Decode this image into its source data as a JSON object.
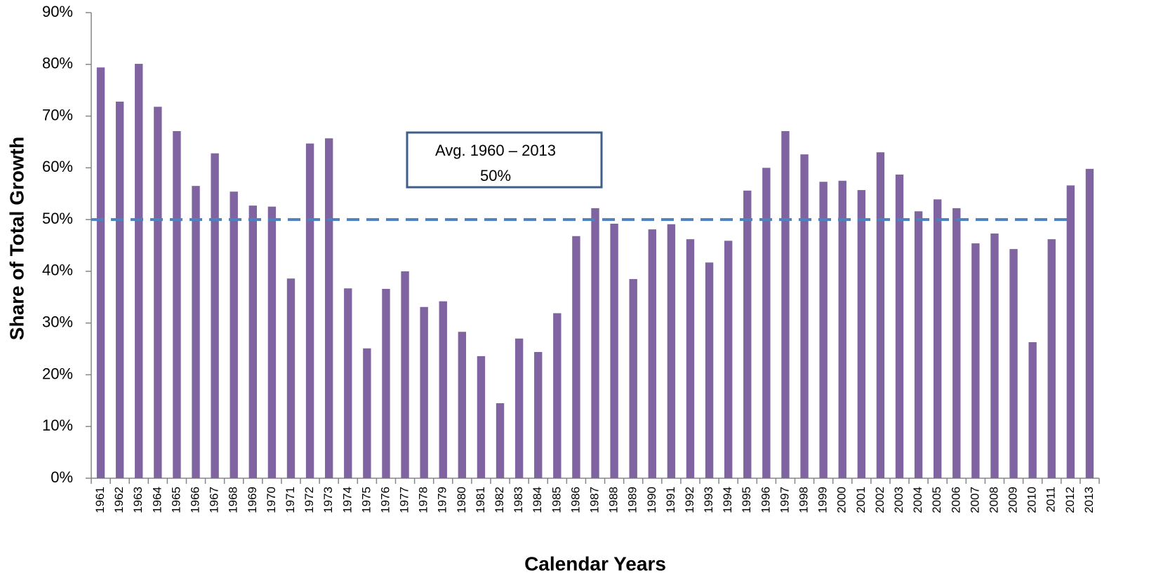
{
  "chart_data": {
    "type": "bar",
    "x_label": "Calendar Years",
    "y_label": "Share of Total Growth",
    "categories": [
      "1961",
      "1962",
      "1963",
      "1964",
      "1965",
      "1966",
      "1967",
      "1968",
      "1969",
      "1970",
      "1971",
      "1972",
      "1973",
      "1974",
      "1975",
      "1976",
      "1977",
      "1978",
      "1979",
      "1980",
      "1981",
      "1982",
      "1983",
      "1984",
      "1985",
      "1986",
      "1987",
      "1988",
      "1989",
      "1990",
      "1991",
      "1992",
      "1993",
      "1994",
      "1995",
      "1996",
      "1997",
      "1998",
      "1999",
      "2000",
      "2001",
      "2002",
      "2003",
      "2004",
      "2005",
      "2006",
      "2007",
      "2008",
      "2009",
      "2010",
      "2011",
      "2012",
      "2013"
    ],
    "values": [
      79.4,
      72.8,
      80.1,
      71.8,
      67.1,
      56.5,
      62.8,
      55.4,
      52.7,
      52.5,
      38.6,
      64.7,
      65.7,
      36.7,
      25.1,
      36.6,
      40.0,
      33.1,
      34.2,
      28.3,
      23.6,
      14.5,
      27.0,
      24.4,
      31.9,
      46.8,
      52.2,
      49.2,
      38.5,
      48.1,
      49.1,
      46.2,
      41.7,
      45.9,
      55.6,
      60.0,
      67.1,
      62.6,
      57.3,
      57.5,
      55.7,
      63.0,
      58.7,
      51.6,
      53.9,
      52.2,
      45.4,
      47.3,
      44.3,
      26.3,
      46.2,
      56.6,
      59.8
    ],
    "color": "#8064a2",
    "ylim": [
      0,
      90
    ],
    "yticks": [
      {
        "value": 0,
        "label": "0%"
      },
      {
        "value": 10,
        "label": "10%"
      },
      {
        "value": 20,
        "label": "20%"
      },
      {
        "value": 30,
        "label": "30%"
      },
      {
        "value": 40,
        "label": "40%"
      },
      {
        "value": 50,
        "label": "50%"
      },
      {
        "value": 60,
        "label": "60%"
      },
      {
        "value": 70,
        "label": "70%"
      },
      {
        "value": 80,
        "label": "80%"
      },
      {
        "value": 90,
        "label": "90%"
      }
    ],
    "grid": false,
    "average_line": {
      "value": 50,
      "color": "#4f81bd"
    },
    "annotation": {
      "lines": [
        "Avg. 1960 – 2013",
        "50%"
      ],
      "border_color": "#3d5f8a"
    }
  }
}
